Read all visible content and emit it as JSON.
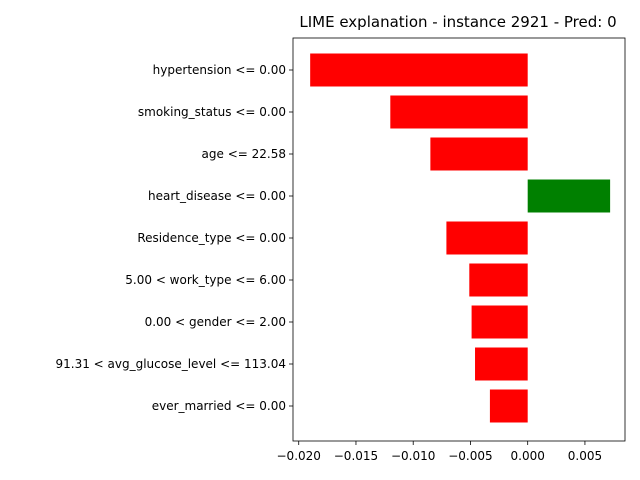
{
  "chart_data": {
    "type": "bar",
    "orientation": "horizontal",
    "title": "LIME explanation - instance 2921 - Pred: 0",
    "xlabel": "",
    "ylabel": "",
    "xlim": [
      -0.0205,
      0.0085
    ],
    "grid": false,
    "categories": [
      "hypertension <= 0.00",
      "smoking_status <= 0.00",
      "age <= 22.58",
      "heart_disease <= 0.00",
      "Residence_type <= 0.00",
      "5.00 < work_type <= 6.00",
      "0.00 < gender <= 2.00",
      "91.31 < avg_glucose_level <= 113.04",
      "ever_married <= 0.00"
    ],
    "values": [
      -0.019,
      -0.012,
      -0.0085,
      0.0072,
      -0.0071,
      -0.0051,
      -0.0049,
      -0.0046,
      -0.0033
    ],
    "x_ticks": [
      -0.02,
      -0.015,
      -0.01,
      -0.005,
      0.0,
      0.005
    ],
    "x_tick_labels": [
      "−0.020",
      "−0.015",
      "−0.010",
      "−0.005",
      "0.000",
      "0.005"
    ],
    "colors": {
      "negative": "#ff0000",
      "positive": "#008000"
    }
  }
}
